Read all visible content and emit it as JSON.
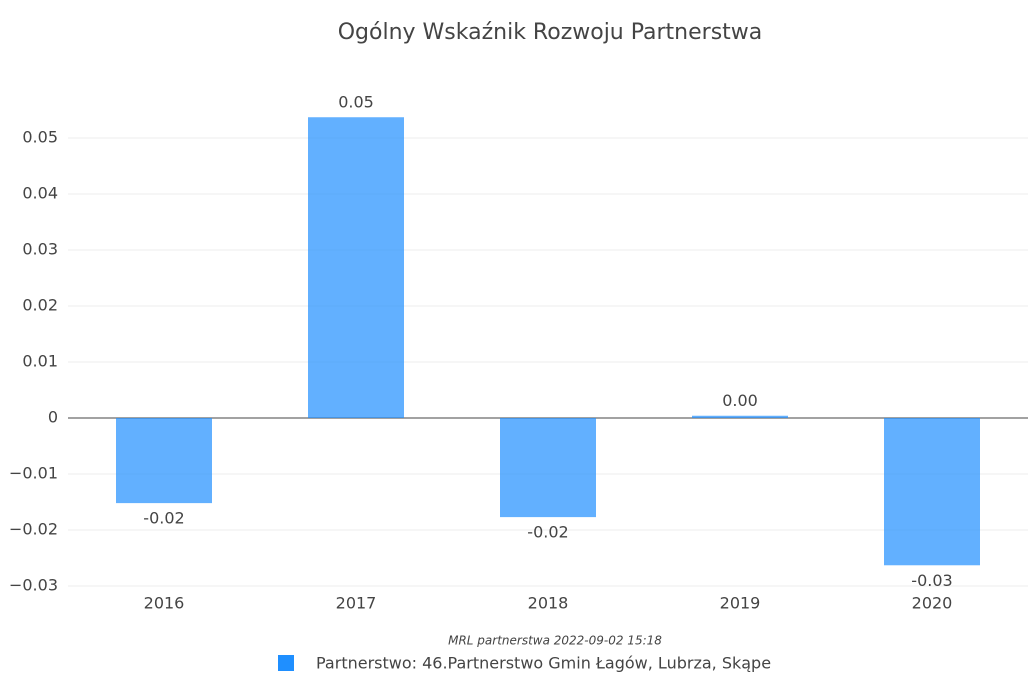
{
  "chart_data": {
    "type": "bar",
    "title": "Ogólny Wskaźnik Rozwoju Partnerstwa",
    "categories": [
      "2016",
      "2017",
      "2018",
      "2019",
      "2020"
    ],
    "series": [
      {
        "name": "Partnerstwo: 46.Partnerstwo Gmin Łagów, Lubrza, Skąpe",
        "color": "#1f8fff",
        "values": [
          -0.0152,
          0.0537,
          -0.0177,
          0.0004,
          -0.0263
        ],
        "value_labels": [
          "-0.02",
          "0.05",
          "-0.02",
          "0.00",
          "-0.03"
        ]
      }
    ],
    "ylim": [
      -0.03,
      0.0576
    ],
    "yticks": [
      {
        "value": -0.03,
        "label": "−0.03"
      },
      {
        "value": -0.02,
        "label": "−0.02"
      },
      {
        "value": -0.01,
        "label": "−0.01"
      },
      0,
      0.01,
      0.02,
      0.03,
      0.04,
      0.05
    ],
    "grid": true,
    "annotation": "MRL partnerstwa 2022-09-02 15:18",
    "legend": "bottom"
  }
}
